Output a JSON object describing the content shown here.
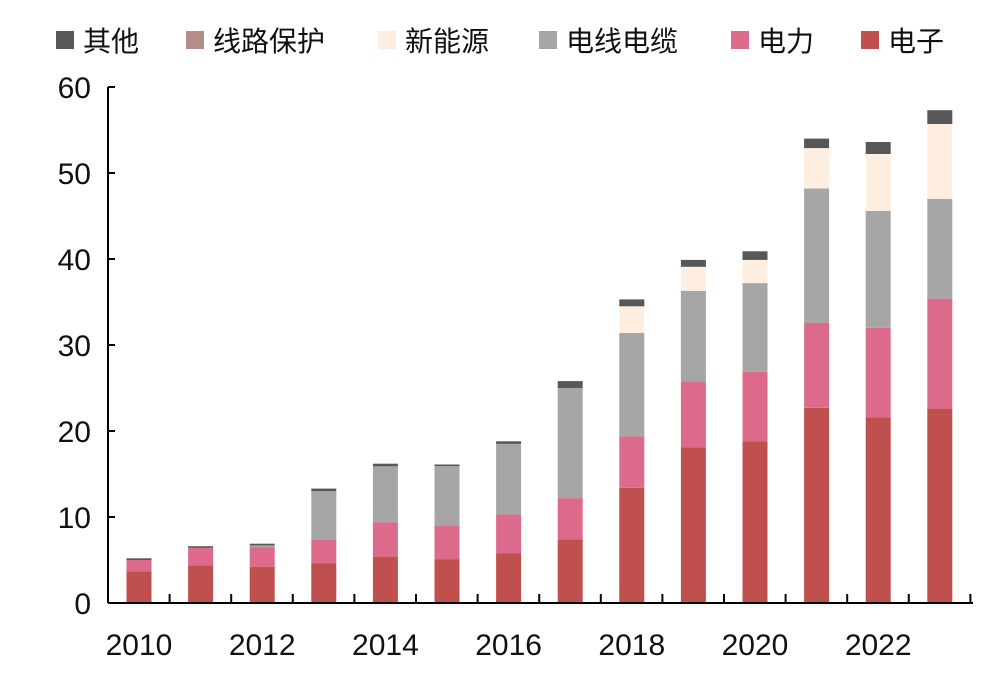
{
  "chart_data": {
    "type": "bar",
    "stacked": true,
    "categories": [
      "2010",
      "2011",
      "2012",
      "2013",
      "2014",
      "2015",
      "2016",
      "2017",
      "2018",
      "2019",
      "2020",
      "2021",
      "2022",
      "2023"
    ],
    "x_tick_labels": [
      "2010",
      "2012",
      "2014",
      "2016",
      "2018",
      "2020",
      "2022"
    ],
    "y_tick_labels": [
      "0",
      "10",
      "20",
      "30",
      "40",
      "50",
      "60"
    ],
    "ylim": [
      0,
      60
    ],
    "grid": false,
    "legend_position": "top",
    "series": [
      {
        "name": "电子",
        "color": "#c0504d",
        "values": [
          3.7,
          4.4,
          4.2,
          4.6,
          5.4,
          5.1,
          5.8,
          7.4,
          13.4,
          18.1,
          18.8,
          22.7,
          21.6,
          22.6
        ]
      },
      {
        "name": "电力",
        "color": "#dc6b8b",
        "values": [
          1.3,
          2.0,
          2.3,
          2.8,
          4.0,
          3.9,
          4.5,
          4.8,
          6.0,
          7.6,
          8.1,
          9.9,
          10.4,
          12.8
        ]
      },
      {
        "name": "电线电缆",
        "color": "#a6a6a6",
        "values": [
          0.0,
          0.0,
          0.2,
          5.6,
          6.5,
          6.9,
          8.2,
          12.8,
          12.0,
          10.6,
          10.3,
          15.6,
          13.6,
          11.6
        ]
      },
      {
        "name": "新能源",
        "color": "#fdeedf",
        "values": [
          0.0,
          0.0,
          0.0,
          0.0,
          0.0,
          0.0,
          0.0,
          0.0,
          3.1,
          2.8,
          2.7,
          4.7,
          6.6,
          8.7
        ]
      },
      {
        "name": "线路保护",
        "color": "#b68c86",
        "values": [
          0.0,
          0.0,
          0.0,
          0.0,
          0.0,
          0.0,
          0.0,
          0.0,
          0.0,
          0.0,
          0.0,
          0.0,
          0.0,
          0.0
        ]
      },
      {
        "name": "其他",
        "color": "#575757",
        "values": [
          0.2,
          0.2,
          0.2,
          0.3,
          0.3,
          0.2,
          0.3,
          0.8,
          0.8,
          0.8,
          1.0,
          1.1,
          1.4,
          1.6
        ]
      }
    ]
  }
}
